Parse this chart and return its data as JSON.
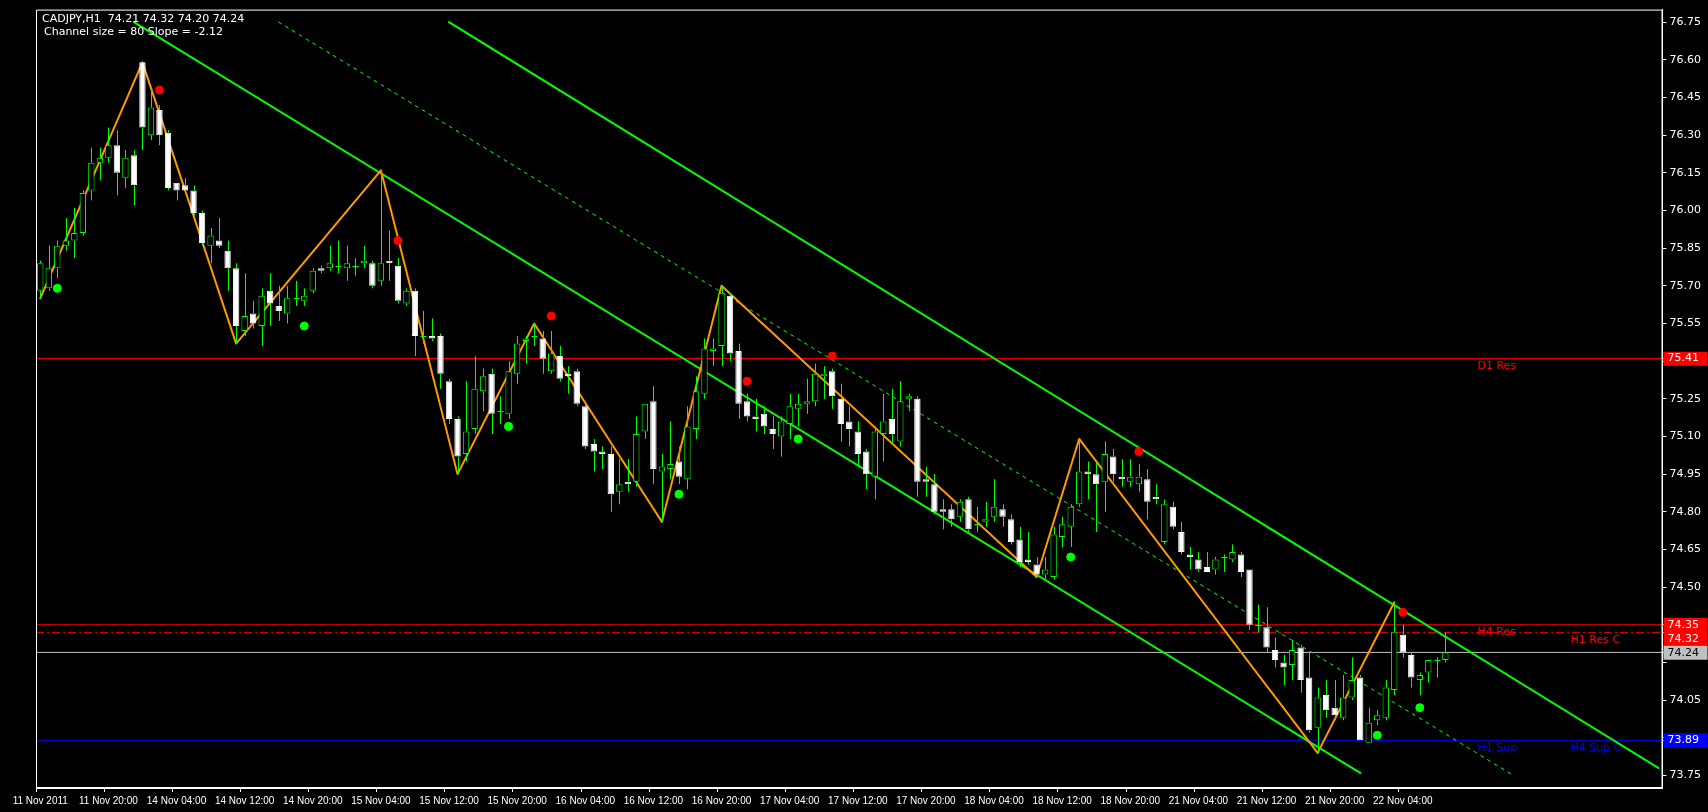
{
  "chart_data": {
    "type": "candlestick",
    "title": "CADJPY,H1  74.21 74.32 74.20 74.24",
    "subtitle": "Channel size = 80 Slope = -2.12",
    "color": "#00ff00",
    "categories": [
      "11 Nov 2011",
      null,
      null,
      null,
      null,
      null,
      null,
      null,
      "11 Nov 20:00",
      null,
      null,
      null,
      null,
      null,
      null,
      null,
      "14 Nov 04:00",
      null,
      null,
      null,
      null,
      null,
      null,
      null,
      "14 Nov 12:00",
      null,
      null,
      null,
      null,
      null,
      null,
      null,
      "14 Nov 20:00",
      null,
      null,
      null,
      null,
      null,
      null,
      null,
      "15 Nov 04:00",
      null,
      null,
      null,
      null,
      null,
      null,
      null,
      "15 Nov 12:00",
      null,
      null,
      null,
      null,
      null,
      null,
      null,
      "15 Nov 20:00",
      null,
      null,
      null,
      null,
      null,
      null,
      null,
      "16 Nov 04:00",
      null,
      null,
      null,
      null,
      null,
      null,
      null,
      "16 Nov 12:00",
      null,
      null,
      null,
      null,
      null,
      null,
      null,
      "16 Nov 20:00",
      null,
      null,
      null,
      null,
      null,
      null,
      null,
      "17 Nov 04:00",
      null,
      null,
      null,
      null,
      null,
      null,
      null,
      "17 Nov 12:00",
      null,
      null,
      null,
      null,
      null,
      null,
      null,
      "17 Nov 20:00",
      null,
      null,
      null,
      null,
      null,
      null,
      null,
      "18 Nov 04:00",
      null,
      null,
      null,
      null,
      null,
      null,
      null,
      "18 Nov 12:00",
      null,
      null,
      null,
      null,
      null,
      null,
      null,
      "18 Nov 20:00",
      null,
      null,
      null,
      null,
      null,
      null,
      null,
      "21 Nov 04:00",
      null,
      null,
      null,
      null,
      null,
      null,
      null,
      "21 Nov 12:00",
      null,
      null,
      null,
      null,
      null,
      null,
      null,
      "21 Nov 20:00",
      null,
      null,
      null,
      null,
      null,
      null,
      null,
      "22 Nov 04:00",
      null,
      null,
      null,
      null,
      null,
      null,
      null,
      null,
      null,
      null,
      null,
      null,
      null,
      null,
      null,
      null,
      null,
      null,
      null,
      null,
      null,
      null,
      null,
      null,
      null,
      null,
      null,
      null,
      null,
      null
    ],
    "ohlc": [
      [
        75.68,
        75.8,
        75.65,
        75.79
      ],
      [
        75.69,
        75.86,
        75.68,
        75.77
      ],
      [
        75.77,
        75.88,
        75.73,
        75.86
      ],
      [
        75.86,
        75.97,
        75.84,
        75.88
      ],
      [
        75.88,
        76.01,
        75.81,
        75.91
      ],
      [
        75.91,
        76.08,
        75.9,
        76.07
      ],
      [
        76.08,
        76.25,
        76.04,
        76.19
      ],
      [
        76.19,
        76.25,
        76.12,
        76.21
      ],
      [
        76.21,
        76.33,
        76.19,
        76.26
      ],
      [
        76.26,
        76.32,
        76.06,
        76.15
      ],
      [
        76.13,
        76.24,
        76.09,
        76.21
      ],
      [
        76.22,
        76.24,
        76.02,
        76.1
      ],
      [
        76.59,
        76.59,
        76.24,
        76.33
      ],
      [
        76.3,
        76.48,
        76.28,
        76.41
      ],
      [
        76.4,
        76.42,
        76.26,
        76.3
      ],
      [
        76.31,
        76.32,
        76.08,
        76.09
      ],
      [
        76.11,
        76.11,
        76.04,
        76.08
      ],
      [
        76.1,
        76.13,
        76.07,
        76.08
      ],
      [
        76.08,
        76.1,
        75.98,
        75.99
      ],
      [
        75.99,
        76.0,
        75.86,
        75.87
      ],
      [
        75.86,
        75.93,
        75.79,
        75.9
      ],
      [
        75.88,
        75.97,
        75.85,
        75.86
      ],
      [
        75.84,
        75.88,
        75.68,
        75.77
      ],
      [
        75.77,
        75.79,
        75.47,
        75.54
      ],
      [
        75.52,
        75.75,
        75.5,
        75.58
      ],
      [
        75.59,
        75.64,
        75.53,
        75.55
      ],
      [
        75.54,
        75.69,
        75.46,
        75.66
      ],
      [
        75.68,
        75.75,
        75.54,
        75.63
      ],
      [
        75.62,
        75.7,
        75.56,
        75.6
      ],
      [
        75.59,
        75.7,
        75.55,
        75.65
      ],
      [
        75.65,
        75.72,
        75.62,
        75.65
      ],
      [
        75.64,
        75.69,
        75.62,
        75.66
      ],
      [
        75.68,
        75.77,
        75.67,
        75.76
      ],
      [
        75.77,
        75.78,
        75.75,
        75.76
      ],
      [
        75.77,
        75.86,
        75.76,
        75.79
      ],
      [
        75.78,
        75.88,
        75.75,
        75.78
      ],
      [
        75.77,
        75.86,
        75.72,
        75.79
      ],
      [
        75.78,
        75.81,
        75.74,
        75.78
      ],
      [
        75.79,
        75.86,
        75.77,
        75.8
      ],
      [
        75.79,
        75.8,
        75.69,
        75.7
      ],
      [
        75.72,
        76.16,
        75.7,
        75.79
      ],
      [
        75.8,
        75.92,
        75.72,
        75.79
      ],
      [
        75.78,
        75.81,
        75.63,
        75.64
      ],
      [
        75.63,
        75.69,
        75.62,
        75.68
      ],
      [
        75.68,
        75.69,
        75.42,
        75.5
      ],
      [
        75.5,
        75.6,
        75.47,
        75.5
      ],
      [
        75.5,
        75.57,
        75.48,
        75.49
      ],
      [
        75.5,
        75.51,
        75.29,
        75.35
      ],
      [
        75.32,
        75.33,
        75.15,
        75.17
      ],
      [
        75.17,
        75.18,
        74.95,
        75.02
      ],
      [
        75.03,
        75.32,
        75.0,
        75.12
      ],
      [
        75.13,
        75.42,
        75.11,
        75.29
      ],
      [
        75.28,
        75.37,
        75.2,
        75.34
      ],
      [
        75.35,
        75.37,
        75.11,
        75.19
      ],
      [
        75.2,
        75.26,
        75.15,
        75.2
      ],
      [
        75.19,
        75.4,
        75.17,
        75.36
      ],
      [
        75.35,
        75.5,
        75.31,
        75.47
      ],
      [
        75.48,
        75.5,
        75.39,
        75.49
      ],
      [
        75.5,
        75.55,
        75.46,
        75.5
      ],
      [
        75.49,
        75.52,
        75.35,
        75.41
      ],
      [
        75.36,
        75.52,
        75.35,
        75.43
      ],
      [
        75.42,
        75.46,
        75.32,
        75.33
      ],
      [
        75.35,
        75.38,
        75.27,
        75.34
      ],
      [
        75.36,
        75.37,
        75.22,
        75.23
      ],
      [
        75.22,
        75.23,
        75.05,
        75.06
      ],
      [
        75.07,
        75.09,
        74.96,
        75.04
      ],
      [
        75.04,
        75.06,
        74.97,
        75.03
      ],
      [
        75.03,
        75.06,
        74.8,
        74.87
      ],
      [
        74.88,
        75.01,
        74.83,
        74.91
      ],
      [
        74.92,
        75.01,
        74.88,
        74.91
      ],
      [
        74.92,
        75.18,
        74.9,
        75.11
      ],
      [
        75.12,
        75.23,
        75.09,
        75.23
      ],
      [
        75.24,
        75.3,
        74.91,
        74.97
      ],
      [
        74.96,
        75.03,
        74.76,
        74.98
      ],
      [
        74.97,
        75.16,
        74.93,
        74.99
      ],
      [
        75.0,
        75.06,
        74.91,
        74.94
      ],
      [
        74.93,
        75.22,
        74.89,
        75.14
      ],
      [
        75.13,
        75.34,
        75.09,
        75.28
      ],
      [
        75.27,
        75.49,
        75.25,
        75.45
      ],
      [
        75.44,
        75.49,
        75.38,
        75.45
      ],
      [
        75.46,
        75.7,
        75.38,
        75.67
      ],
      [
        75.66,
        75.67,
        75.4,
        75.43
      ],
      [
        75.44,
        75.47,
        75.17,
        75.23
      ],
      [
        75.24,
        75.27,
        75.16,
        75.18
      ],
      [
        75.18,
        75.25,
        75.12,
        75.17
      ],
      [
        75.19,
        75.22,
        75.11,
        75.14
      ],
      [
        75.13,
        75.18,
        75.05,
        75.11
      ],
      [
        75.1,
        75.18,
        75.02,
        75.16
      ],
      [
        75.15,
        75.27,
        75.09,
        75.22
      ],
      [
        75.21,
        75.27,
        75.14,
        75.23
      ],
      [
        75.23,
        75.33,
        75.19,
        75.24
      ],
      [
        75.24,
        75.39,
        75.22,
        75.35
      ],
      [
        75.34,
        75.38,
        75.25,
        75.35
      ],
      [
        75.36,
        75.37,
        75.21,
        75.26
      ],
      [
        75.25,
        75.31,
        75.08,
        75.15
      ],
      [
        75.16,
        75.22,
        75.06,
        75.13
      ],
      [
        75.12,
        75.16,
        74.98,
        75.03
      ],
      [
        75.04,
        75.05,
        74.89,
        74.95
      ],
      [
        74.94,
        75.14,
        74.85,
        75.12
      ],
      [
        75.11,
        75.27,
        75.0,
        75.16
      ],
      [
        75.17,
        75.29,
        75.07,
        75.11
      ],
      [
        75.08,
        75.32,
        75.06,
        75.24
      ],
      [
        75.25,
        75.27,
        75.2,
        75.26
      ],
      [
        75.25,
        75.26,
        74.86,
        74.92
      ],
      [
        74.93,
        74.98,
        74.86,
        74.92
      ],
      [
        74.91,
        74.95,
        74.79,
        74.8
      ],
      [
        74.81,
        74.85,
        74.73,
        74.8
      ],
      [
        74.81,
        74.83,
        74.74,
        74.77
      ],
      [
        74.78,
        74.85,
        74.76,
        74.84
      ],
      [
        74.85,
        74.86,
        74.72,
        74.73
      ],
      [
        74.75,
        74.82,
        74.72,
        74.75
      ],
      [
        74.76,
        74.84,
        74.74,
        74.77
      ],
      [
        74.78,
        74.93,
        74.76,
        74.82
      ],
      [
        74.81,
        74.83,
        74.74,
        74.78
      ],
      [
        74.77,
        74.79,
        74.67,
        74.68
      ],
      [
        74.69,
        74.74,
        74.58,
        74.6
      ],
      [
        74.61,
        74.72,
        74.59,
        74.6
      ],
      [
        74.59,
        74.62,
        74.54,
        74.55
      ],
      [
        74.55,
        74.62,
        74.53,
        74.57
      ],
      [
        74.54,
        74.74,
        74.53,
        74.71
      ],
      [
        74.7,
        74.78,
        74.66,
        74.75
      ],
      [
        74.74,
        74.83,
        74.66,
        74.82
      ],
      [
        74.83,
        75.09,
        74.82,
        74.96
      ],
      [
        74.96,
        75.0,
        74.85,
        74.95
      ],
      [
        74.95,
        75.0,
        74.72,
        74.91
      ],
      [
        74.92,
        75.08,
        74.8,
        75.03
      ],
      [
        75.02,
        75.05,
        74.92,
        74.95
      ],
      [
        74.94,
        75.01,
        74.9,
        74.93
      ],
      [
        74.92,
        75.01,
        74.9,
        74.94
      ],
      [
        74.91,
        74.99,
        74.88,
        74.94
      ],
      [
        74.93,
        74.97,
        74.77,
        74.84
      ],
      [
        74.86,
        74.91,
        74.83,
        74.85
      ],
      [
        74.68,
        74.85,
        74.67,
        74.83
      ],
      [
        74.82,
        74.84,
        74.73,
        74.74
      ],
      [
        74.72,
        74.76,
        74.63,
        74.64
      ],
      [
        74.63,
        74.66,
        74.57,
        74.62
      ],
      [
        74.61,
        74.64,
        74.56,
        74.57
      ],
      [
        74.58,
        74.64,
        74.56,
        74.56
      ],
      [
        74.57,
        74.62,
        74.55,
        74.61
      ],
      [
        74.62,
        74.63,
        74.56,
        74.62
      ],
      [
        74.61,
        74.67,
        74.6,
        74.64
      ],
      [
        74.63,
        74.64,
        74.54,
        74.56
      ],
      [
        74.57,
        74.57,
        74.33,
        74.35
      ],
      [
        74.35,
        74.43,
        74.32,
        74.35
      ],
      [
        74.34,
        74.42,
        74.24,
        74.26
      ],
      [
        74.25,
        74.3,
        74.18,
        74.21
      ],
      [
        74.2,
        74.23,
        74.11,
        74.18
      ],
      [
        74.19,
        74.29,
        74.13,
        74.25
      ],
      [
        74.26,
        74.27,
        74.08,
        74.13
      ],
      [
        74.14,
        74.24,
        73.92,
        73.93
      ],
      [
        73.94,
        74.1,
        73.84,
        74.06
      ],
      [
        74.07,
        74.13,
        73.98,
        74.01
      ],
      [
        74.02,
        74.13,
        73.97,
        73.99
      ],
      [
        73.98,
        74.15,
        73.97,
        74.06
      ],
      [
        74.06,
        74.22,
        74.05,
        74.13
      ],
      [
        74.14,
        74.15,
        73.89,
        73.89
      ],
      [
        73.88,
        74.02,
        73.88,
        73.96
      ],
      [
        73.97,
        74.01,
        73.95,
        73.99
      ],
      [
        73.98,
        74.13,
        73.97,
        74.1
      ],
      [
        74.09,
        74.44,
        74.07,
        74.32
      ],
      [
        74.31,
        74.35,
        74.22,
        74.24
      ],
      [
        74.23,
        74.24,
        74.1,
        74.14
      ],
      [
        74.13,
        74.16,
        74.07,
        74.15
      ],
      [
        74.16,
        74.21,
        74.12,
        74.21
      ],
      [
        74.21,
        74.22,
        74.14,
        74.21
      ],
      [
        74.21,
        74.32,
        74.2,
        74.24
      ],
      null,
      null,
      null,
      null,
      null,
      null,
      null,
      null,
      null,
      null,
      null,
      null,
      null,
      null,
      null,
      null,
      null,
      null,
      null,
      null,
      null,
      null,
      null,
      null,
      null
    ],
    "series": [
      {
        "type": "line",
        "color": "#ff9900",
        "values": [
          75.65,
          null,
          null,
          null,
          null,
          null,
          null,
          null,
          null,
          null,
          null,
          null,
          76.59,
          null,
          null,
          null,
          null,
          null,
          null,
          null,
          null,
          null,
          null,
          75.47,
          null,
          null,
          null,
          null,
          null,
          null,
          null,
          null,
          null,
          null,
          null,
          null,
          null,
          null,
          null,
          null,
          76.16,
          null,
          null,
          null,
          null,
          null,
          null,
          null,
          null,
          74.95,
          null,
          null,
          null,
          null,
          null,
          null,
          null,
          null,
          75.55,
          null,
          null,
          null,
          null,
          null,
          null,
          null,
          null,
          null,
          null,
          null,
          null,
          null,
          null,
          74.76,
          null,
          null,
          null,
          null,
          null,
          null,
          75.7,
          null,
          null,
          null,
          null,
          null,
          null,
          null,
          null,
          null,
          null,
          null,
          null,
          null,
          null,
          null,
          null,
          null,
          null,
          null,
          null,
          null,
          null,
          null,
          null,
          null,
          null,
          null,
          null,
          null,
          null,
          null,
          null,
          null,
          null,
          null,
          null,
          74.54,
          null,
          null,
          null,
          null,
          75.09,
          null,
          null,
          null,
          null,
          null,
          null,
          null,
          null,
          null,
          null,
          null,
          null,
          null,
          null,
          null,
          null,
          null,
          null,
          null,
          null,
          null,
          null,
          null,
          null,
          null,
          null,
          null,
          73.84,
          null,
          null,
          null,
          null,
          null,
          null,
          null,
          null,
          74.44,
          null,
          null,
          null,
          null,
          null,
          null,
          null,
          null,
          null,
          null,
          null,
          null,
          null,
          null,
          null,
          null,
          null,
          null,
          null,
          null,
          null,
          null,
          null,
          null,
          null,
          null,
          null,
          null,
          null,
          null,
          null
        ]
      },
      {
        "type": "line",
        "color": "#00ff00",
        "values": [
          null,
          null,
          null,
          null,
          null,
          null,
          null,
          null,
          null,
          null,
          null,
          76.75,
          null,
          null,
          null,
          null,
          null,
          null,
          null,
          null,
          null,
          null,
          null,
          null,
          null,
          null,
          null,
          null,
          null,
          null,
          null,
          null,
          null,
          null,
          null,
          null,
          null,
          null,
          null,
          null,
          null,
          null,
          null,
          null,
          null,
          null,
          null,
          null,
          null,
          null,
          null,
          null,
          null,
          null,
          null,
          null,
          null,
          null,
          null,
          null,
          null,
          null,
          null,
          null,
          null,
          null,
          null,
          null,
          null,
          null,
          null,
          null,
          null,
          null,
          null,
          null,
          null,
          null,
          null,
          null,
          null,
          null,
          null,
          null,
          null,
          null,
          null,
          null,
          null,
          null,
          null,
          null,
          null,
          null,
          null,
          null,
          null,
          null,
          null,
          null,
          null,
          null,
          null,
          null,
          null,
          null,
          null,
          null,
          null,
          null,
          null,
          null,
          null,
          null,
          null,
          null,
          null,
          null,
          null,
          null,
          null,
          null,
          null,
          null,
          null,
          null,
          null,
          null,
          null,
          null,
          null,
          null,
          null,
          null,
          null,
          null,
          null,
          null,
          null,
          null,
          null,
          null,
          null,
          null,
          null,
          null,
          null,
          null,
          null,
          null,
          null,
          null,
          null,
          null,
          null,
          73.76,
          null,
          null,
          null,
          null,
          null,
          null,
          null,
          null,
          null,
          null,
          null,
          null,
          null,
          null,
          null,
          null,
          null,
          null,
          null,
          null,
          null,
          null,
          null,
          null,
          null,
          null,
          null,
          null,
          null,
          null,
          null,
          null,
          null,
          null,
          null
        ]
      },
      {
        "type": "line",
        "color": "#00ff00",
        "values": [
          null,
          null,
          null,
          null,
          null,
          null,
          null,
          null,
          null,
          null,
          null,
          null,
          null,
          null,
          null,
          null,
          null,
          null,
          null,
          null,
          null,
          null,
          null,
          null,
          null,
          null,
          null,
          null,
          null,
          null,
          null,
          null,
          null,
          null,
          null,
          null,
          null,
          null,
          null,
          null,
          null,
          null,
          null,
          null,
          null,
          null,
          null,
          null,
          76.75,
          null,
          null,
          null,
          null,
          null,
          null,
          null,
          null,
          null,
          null,
          null,
          null,
          null,
          null,
          null,
          null,
          null,
          null,
          null,
          null,
          null,
          null,
          null,
          null,
          null,
          null,
          null,
          null,
          null,
          null,
          null,
          null,
          null,
          null,
          null,
          null,
          null,
          null,
          null,
          null,
          null,
          null,
          null,
          null,
          null,
          null,
          null,
          null,
          null,
          null,
          null,
          null,
          null,
          null,
          null,
          null,
          null,
          null,
          null,
          null,
          null,
          null,
          null,
          null,
          null,
          null,
          null,
          null,
          null,
          null,
          null,
          null,
          null,
          null,
          null,
          null,
          null,
          null,
          null,
          null,
          null,
          null,
          null,
          null,
          null,
          null,
          null,
          null,
          null,
          null,
          null,
          null,
          null,
          null,
          null,
          null,
          null,
          null,
          null,
          null,
          null,
          null,
          null,
          null,
          null,
          null,
          null,
          null,
          null,
          null,
          null,
          null,
          null,
          null,
          null,
          null,
          null,
          null,
          null,
          null,
          null,
          null,
          null,
          null,
          null,
          null,
          null,
          null,
          null,
          null,
          null,
          null,
          null,
          null,
          null,
          null,
          null,
          null,
          null,
          null,
          null,
          73.78
        ]
      },
      {
        "type": "line",
        "color": "#00ff00",
        "line_style": "dashed",
        "values": [
          null,
          null,
          null,
          null,
          null,
          null,
          null,
          null,
          null,
          null,
          null,
          null,
          null,
          null,
          null,
          null,
          null,
          null,
          null,
          null,
          null,
          null,
          null,
          null,
          null,
          null,
          null,
          null,
          76.75,
          null,
          null,
          null,
          null,
          null,
          null,
          null,
          null,
          null,
          null,
          null,
          null,
          null,
          null,
          null,
          null,
          null,
          null,
          null,
          null,
          null,
          null,
          null,
          null,
          null,
          null,
          null,
          null,
          null,
          null,
          null,
          null,
          null,
          null,
          null,
          null,
          null,
          null,
          null,
          null,
          null,
          null,
          null,
          null,
          null,
          null,
          null,
          null,
          null,
          null,
          null,
          null,
          null,
          null,
          null,
          null,
          null,
          null,
          null,
          null,
          null,
          null,
          null,
          null,
          null,
          null,
          null,
          null,
          null,
          null,
          null,
          null,
          null,
          null,
          null,
          null,
          null,
          null,
          null,
          null,
          null,
          null,
          null,
          null,
          null,
          null,
          null,
          null,
          null,
          null,
          null,
          null,
          null,
          null,
          null,
          null,
          null,
          null,
          null,
          null,
          null,
          null,
          null,
          null,
          null,
          null,
          null,
          null,
          null,
          null,
          null,
          null,
          null,
          null,
          null,
          null,
          null,
          null,
          null,
          null,
          null,
          null,
          null,
          null,
          null,
          null,
          null,
          null,
          null,
          null,
          null,
          null,
          null,
          null,
          null,
          null,
          null,
          null,
          null,
          null,
          null,
          null,
          null,
          null,
          73.75,
          null,
          null,
          null,
          null,
          null,
          null,
          null,
          null,
          null,
          null,
          null,
          null,
          null,
          null,
          null,
          null,
          null
        ]
      },
      {
        "type": "scatter",
        "color": "#ff0000",
        "marker": "circle",
        "values": [
          null,
          null,
          null,
          null,
          null,
          null,
          null,
          null,
          null,
          null,
          null,
          null,
          null,
          null,
          76.48,
          null,
          null,
          null,
          null,
          null,
          null,
          null,
          null,
          null,
          null,
          null,
          null,
          null,
          null,
          null,
          null,
          null,
          null,
          null,
          null,
          null,
          null,
          null,
          null,
          null,
          null,
          null,
          75.88,
          null,
          null,
          null,
          null,
          null,
          null,
          null,
          null,
          null,
          null,
          null,
          null,
          null,
          null,
          null,
          null,
          null,
          75.58,
          null,
          null,
          null,
          null,
          null,
          null,
          null,
          null,
          null,
          null,
          null,
          null,
          null,
          null,
          null,
          null,
          null,
          null,
          null,
          null,
          null,
          null,
          75.32,
          null,
          null,
          null,
          null,
          null,
          null,
          null,
          null,
          null,
          75.42,
          null,
          null,
          null,
          null,
          null,
          null,
          null,
          null,
          null,
          null,
          null,
          null,
          null,
          null,
          null,
          null,
          null,
          null,
          null,
          null,
          null,
          null,
          null,
          null,
          null,
          null,
          null,
          null,
          null,
          null,
          null,
          null,
          null,
          null,
          null,
          75.04,
          null,
          null,
          null,
          null,
          null,
          null,
          null,
          null,
          null,
          null,
          null,
          null,
          null,
          null,
          null,
          null,
          null,
          null,
          null,
          null,
          null,
          null,
          null,
          null,
          null,
          null,
          null,
          null,
          null,
          null,
          74.4,
          null,
          null,
          null,
          null,
          null,
          null,
          null,
          null,
          null,
          null,
          null,
          null,
          null,
          null,
          null,
          null,
          null,
          null,
          null,
          null,
          null,
          null,
          null,
          null,
          null,
          null,
          null,
          null,
          null,
          null
        ]
      },
      {
        "type": "scatter",
        "color": "#00ff00",
        "marker": "circle",
        "values": [
          null,
          null,
          75.69,
          null,
          null,
          null,
          null,
          null,
          null,
          null,
          null,
          null,
          null,
          null,
          null,
          null,
          null,
          null,
          null,
          null,
          null,
          null,
          null,
          null,
          null,
          null,
          null,
          null,
          null,
          null,
          null,
          75.54,
          null,
          null,
          null,
          null,
          null,
          null,
          null,
          null,
          null,
          null,
          null,
          null,
          null,
          null,
          null,
          null,
          null,
          null,
          null,
          null,
          null,
          null,
          null,
          75.14,
          null,
          null,
          null,
          null,
          null,
          null,
          null,
          null,
          null,
          null,
          null,
          null,
          null,
          null,
          null,
          null,
          null,
          null,
          null,
          74.87,
          null,
          null,
          null,
          null,
          null,
          null,
          null,
          null,
          null,
          null,
          null,
          null,
          null,
          75.09,
          null,
          null,
          null,
          null,
          null,
          null,
          null,
          null,
          null,
          null,
          null,
          null,
          null,
          null,
          null,
          null,
          null,
          null,
          null,
          null,
          null,
          null,
          null,
          null,
          null,
          null,
          null,
          null,
          null,
          null,
          null,
          74.62,
          null,
          null,
          null,
          null,
          null,
          null,
          null,
          null,
          null,
          null,
          null,
          null,
          null,
          null,
          null,
          null,
          null,
          null,
          null,
          null,
          null,
          null,
          null,
          null,
          null,
          null,
          null,
          null,
          null,
          null,
          null,
          null,
          null,
          null,
          null,
          73.91,
          null,
          null,
          null,
          null,
          74.02,
          null,
          null,
          null,
          null,
          null,
          null,
          null,
          null,
          null,
          null,
          null,
          null,
          null,
          null,
          null,
          null,
          null,
          null,
          null,
          null,
          null,
          null,
          null,
          null,
          null,
          null,
          null,
          null
        ]
      }
    ],
    "colors": [
      "#00ff00",
      "#00ff00",
      "#00ff00",
      "#00ff00",
      "#00ff00",
      "#00ff00",
      "#00ff00",
      "#00ff00",
      "#00ff00",
      "#ffffff",
      "#00ff00",
      "#ffffff",
      "#ffffff",
      "#00ff00",
      "#ffffff",
      "#ffffff",
      "#ffffff",
      "#ffffff",
      "#ffffff",
      "#ffffff",
      "#00ff00",
      "#ffffff",
      "#ffffff",
      "#ffffff",
      "#00ff00",
      "#ffffff",
      "#00ff00",
      "#ffffff",
      "#ffffff",
      "#00ff00",
      "#00ff00",
      "#00ff00",
      "#00ff00",
      "#ffffff",
      "#00ff00",
      "#00ff00",
      "#00ff00",
      "#00ff00",
      "#00ff00",
      "#ffffff",
      "#00ff00",
      "#ffffff",
      "#ffffff",
      "#00ff00",
      "#ffffff",
      "#00ff00",
      "#ffffff",
      "#ffffff",
      "#ffffff",
      "#ffffff",
      "#00ff00",
      "#00ff00",
      "#00ff00",
      "#ffffff",
      "#00ff00",
      "#00ff00",
      "#00ff00",
      "#00ff00",
      "#00ff00",
      "#ffffff",
      "#00ff00",
      "#ffffff",
      "#ffffff",
      "#ffffff",
      "#ffffff",
      "#ffffff",
      "#ffffff",
      "#ffffff",
      "#00ff00",
      "#ffffff",
      "#00ff00",
      "#00ff00",
      "#ffffff",
      "#00ff00",
      "#00ff00",
      "#ffffff",
      "#00ff00",
      "#00ff00",
      "#00ff00",
      "#00ff00",
      "#00ff00",
      "#ffffff",
      "#ffffff",
      "#ffffff",
      "#ffffff",
      "#ffffff",
      "#ffffff",
      "#00ff00",
      "#00ff00",
      "#00ff00",
      "#00ff00",
      "#00ff00",
      "#00ff00",
      "#ffffff",
      "#ffffff",
      "#ffffff",
      "#ffffff",
      "#ffffff",
      "#00ff00",
      "#00ff00",
      "#ffffff",
      "#00ff00",
      "#00ff00",
      "#ffffff",
      "#ffffff",
      "#ffffff",
      "#ffffff",
      "#ffffff",
      "#00ff00",
      "#ffffff",
      "#00ff00",
      "#00ff00",
      "#00ff00",
      "#ffffff",
      "#ffffff",
      "#ffffff",
      "#ffffff",
      "#ffffff",
      "#00ff00",
      "#00ff00",
      "#00ff00",
      "#00ff00",
      "#00ff00",
      "#ffffff",
      "#ffffff",
      "#00ff00",
      "#ffffff",
      "#ffffff",
      "#00ff00",
      "#00ff00",
      "#ffffff",
      "#ffffff",
      "#00ff00",
      "#ffffff",
      "#ffffff",
      "#ffffff",
      "#ffffff",
      "#ffffff",
      "#00ff00",
      "#00ff00",
      "#00ff00",
      "#ffffff",
      "#ffffff",
      "#00ff00",
      "#ffffff",
      "#ffffff",
      "#ffffff",
      "#00ff00",
      "#ffffff",
      "#ffffff",
      "#00ff00",
      "#ffffff",
      "#ffffff",
      "#00ff00",
      "#00ff00",
      "#ffffff",
      "#00ff00",
      "#00ff00",
      "#00ff00",
      "#00ff00",
      "#ffffff",
      "#ffffff",
      "#00ff00",
      "#00ff00",
      "#00ff00",
      "#00ff00",
      null,
      null,
      null,
      null,
      null,
      null,
      null,
      null,
      null,
      null,
      null,
      null,
      null,
      null,
      null,
      null,
      null,
      null,
      null,
      null,
      null,
      null,
      null,
      null,
      null
    ],
    "ylim": [
      73.7,
      76.8
    ],
    "yticks": [
      73.75,
      {
        "value": 73.9,
        "label": null
      },
      73.89,
      74.05,
      {
        "value": 74.2,
        "label": null
      },
      74.24,
      74.32,
      74.35,
      {
        "value": 74.5,
        "label": "74.50"
      },
      74.65,
      {
        "value": 74.8,
        "label": "74.80"
      },
      74.95,
      {
        "value": 75.1,
        "label": "75.10"
      },
      75.25,
      {
        "value": 75.4,
        "label": null
      },
      75.41,
      75.55,
      {
        "value": 75.7,
        "label": "75.70"
      },
      75.85,
      {
        "value": 76,
        "label": "76.00"
      },
      76.15,
      {
        "value": 76.3,
        "label": "76.30"
      },
      76.45,
      {
        "value": 76.6,
        "label": "76.60"
      },
      76.75
    ],
    "ref_lines": [
      {
        "axis": "y",
        "value": 75.41,
        "label": "D1 Res",
        "color": "#ff0000"
      },
      {
        "axis": "y",
        "value": 74.35,
        "label": "H4 Res",
        "color": "#ff0000"
      },
      {
        "axis": "y",
        "value": 74.32,
        "label": "H1 Res C",
        "color": "#ff0000",
        "line_style": "dashed"
      },
      {
        "axis": "y",
        "value": 74.24,
        "color": "#c0c0c0"
      },
      {
        "axis": "y",
        "value": 73.89,
        "label": "H1 Sup",
        "color": "#0000ff"
      }
    ],
    "annotations": [
      {
        "text": "H4 Sup C",
        "y": 73.89
      }
    ]
  }
}
